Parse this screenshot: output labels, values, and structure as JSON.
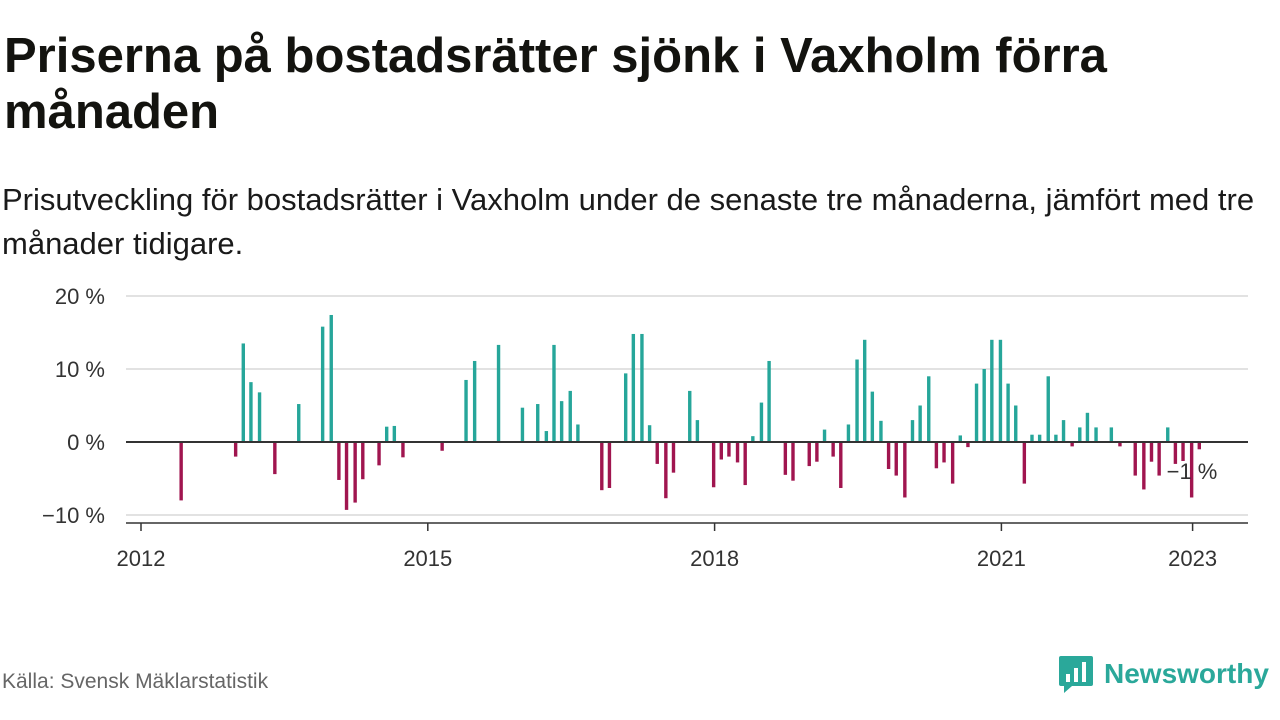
{
  "header": {
    "title": "Priserna på bostadsrätter sjönk i Vaxholm förra månaden",
    "subtitle": "Prisutveckling för bostadsrätter i Vaxholm under de senaste tre månaderna, jämfört med tre månader tidigare."
  },
  "footer": {
    "source": "Källa: Svensk Mäklarstatistik",
    "brand": "Newsworthy"
  },
  "colors": {
    "positive": "#26a69a",
    "negative": "#a0154f",
    "grid": "#d9d9d9",
    "zero_line": "#333333"
  },
  "chart_data": {
    "type": "bar",
    "title": "Priserna på bostadsrätter sjönk i Vaxholm förra månaden",
    "ylim": [
      -11,
      20
    ],
    "y_ticks": [
      20,
      10,
      0,
      -10
    ],
    "y_tick_labels": [
      "20 %",
      "10 %",
      "0 %",
      "−10 %"
    ],
    "x_ticks": [
      2012,
      2015,
      2018,
      2021,
      2023
    ],
    "x_tick_labels": [
      "2012",
      "2015",
      "2018",
      "2021",
      "2023"
    ],
    "grid": true,
    "annotation": {
      "text": "−1 %",
      "x": 2023.0
    },
    "series": [
      {
        "values": [
          [
            2012.42,
            -8
          ],
          [
            2012.99,
            -2
          ],
          [
            2013.07,
            13.5
          ],
          [
            2013.15,
            8.2
          ],
          [
            2013.24,
            6.8
          ],
          [
            2013.4,
            -4.4
          ],
          [
            2013.65,
            5.2
          ],
          [
            2013.9,
            15.8
          ],
          [
            2013.99,
            17.4
          ],
          [
            2014.07,
            -5.2
          ],
          [
            2014.15,
            -9.3
          ],
          [
            2014.24,
            -8.3
          ],
          [
            2014.32,
            -5.1
          ],
          [
            2014.49,
            -3.2
          ],
          [
            2014.57,
            2.1
          ],
          [
            2014.65,
            2.2
          ],
          [
            2014.74,
            -2.1
          ],
          [
            2015.15,
            -1.2
          ],
          [
            2015.4,
            8.5
          ],
          [
            2015.49,
            11.1
          ],
          [
            2015.74,
            13.3
          ],
          [
            2015.99,
            4.7
          ],
          [
            2016.15,
            5.2
          ],
          [
            2016.24,
            1.5
          ],
          [
            2016.32,
            13.3
          ],
          [
            2016.4,
            5.6
          ],
          [
            2016.49,
            7
          ],
          [
            2016.57,
            2.4
          ],
          [
            2016.82,
            -6.6
          ],
          [
            2016.9,
            -6.3
          ],
          [
            2017.07,
            9.4
          ],
          [
            2017.15,
            14.8
          ],
          [
            2017.24,
            14.8
          ],
          [
            2017.32,
            2.3
          ],
          [
            2017.4,
            -3
          ],
          [
            2017.49,
            -7.7
          ],
          [
            2017.57,
            -4.2
          ],
          [
            2017.74,
            7
          ],
          [
            2017.82,
            3
          ],
          [
            2017.99,
            -6.2
          ],
          [
            2018.07,
            -2.4
          ],
          [
            2018.15,
            -2
          ],
          [
            2018.24,
            -2.8
          ],
          [
            2018.32,
            -5.9
          ],
          [
            2018.4,
            0.8
          ],
          [
            2018.49,
            5.4
          ],
          [
            2018.57,
            11.1
          ],
          [
            2018.74,
            -4.5
          ],
          [
            2018.82,
            -5.3
          ],
          [
            2018.99,
            -3.3
          ],
          [
            2019.07,
            -2.7
          ],
          [
            2019.15,
            1.7
          ],
          [
            2019.24,
            -2
          ],
          [
            2019.32,
            -6.3
          ],
          [
            2019.4,
            2.4
          ],
          [
            2019.49,
            11.3
          ],
          [
            2019.57,
            14
          ],
          [
            2019.65,
            6.9
          ],
          [
            2019.74,
            2.9
          ],
          [
            2019.82,
            -3.7
          ],
          [
            2019.9,
            -4.6
          ],
          [
            2019.99,
            -7.6
          ],
          [
            2020.07,
            3
          ],
          [
            2020.15,
            5
          ],
          [
            2020.24,
            9
          ],
          [
            2020.32,
            -3.6
          ],
          [
            2020.4,
            -2.8
          ],
          [
            2020.49,
            -5.7
          ],
          [
            2020.57,
            0.9
          ],
          [
            2020.65,
            -0.7
          ],
          [
            2020.74,
            8
          ],
          [
            2020.82,
            10
          ],
          [
            2020.9,
            14
          ],
          [
            2020.99,
            14
          ],
          [
            2021.07,
            8
          ],
          [
            2021.15,
            5
          ],
          [
            2021.24,
            -5.7
          ],
          [
            2021.32,
            1
          ],
          [
            2021.4,
            1
          ],
          [
            2021.49,
            9
          ],
          [
            2021.57,
            1
          ],
          [
            2021.65,
            3
          ],
          [
            2021.74,
            -0.6
          ],
          [
            2021.82,
            2
          ],
          [
            2021.9,
            4
          ],
          [
            2021.99,
            2
          ],
          [
            2022.15,
            2
          ],
          [
            2022.24,
            -0.6
          ],
          [
            2022.4,
            -4.6
          ],
          [
            2022.49,
            -6.5
          ],
          [
            2022.57,
            -2.7
          ],
          [
            2022.65,
            -4.6
          ],
          [
            2022.74,
            2
          ],
          [
            2022.82,
            -3
          ],
          [
            2022.9,
            -2.6
          ],
          [
            2022.99,
            -7.6
          ],
          [
            2023.07,
            -1
          ]
        ]
      }
    ]
  }
}
